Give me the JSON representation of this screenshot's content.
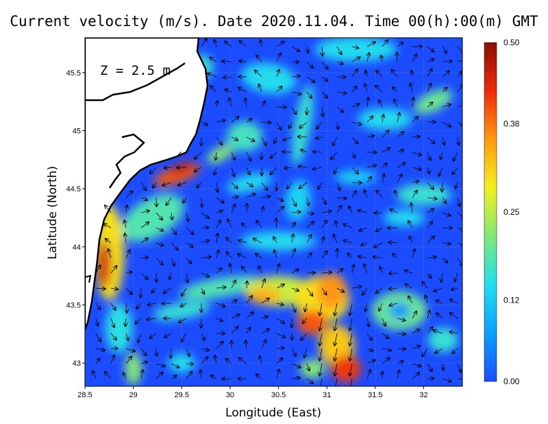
{
  "chart_data": {
    "type": "heatmap",
    "title": "Current velocity (m/s). Date 2020.11.04. Time 00(h):00(m) GMT",
    "annotation": "Z = 2.5 m",
    "xlabel": "Longitude (East)",
    "ylabel": "Latitude (North)",
    "xlim": [
      28.5,
      32.4
    ],
    "ylim": [
      42.8,
      45.8
    ],
    "x_ticks": [
      "28.5",
      "29",
      "29.5",
      "30",
      "30.5",
      "31",
      "31.5",
      "32"
    ],
    "y_ticks": [
      "43",
      "43.5",
      "44",
      "44.5",
      "45",
      "45.5"
    ],
    "grid": true,
    "colorbar": {
      "range": [
        0.0,
        0.5
      ],
      "tick_labels": [
        "0.00",
        "0.12",
        "0.25",
        "0.38",
        "0.50"
      ],
      "colormap": [
        "#1b4cff",
        "#0aa0ff",
        "#22ddee",
        "#7fe87a",
        "#f2f01e",
        "#ff9a12",
        "#ee2a0c",
        "#8a0f05"
      ]
    },
    "colors": {
      "land": "#ffffff",
      "coastline": "#000000",
      "vectors": "#000000"
    },
    "high_speed_features": [
      {
        "feature": "western coastal jet near 28.7E, 43.9N",
        "speed": 0.45
      },
      {
        "feature": "coastal jet near 29.4E, 44.6N",
        "speed": 0.42
      },
      {
        "feature": "southward jet near 31.0E-31.2E, 43.0N-43.6N",
        "speed": 0.4
      },
      {
        "feature": "eddy ring near 31.8E, 43.5N",
        "speed": 0.18
      }
    ]
  }
}
